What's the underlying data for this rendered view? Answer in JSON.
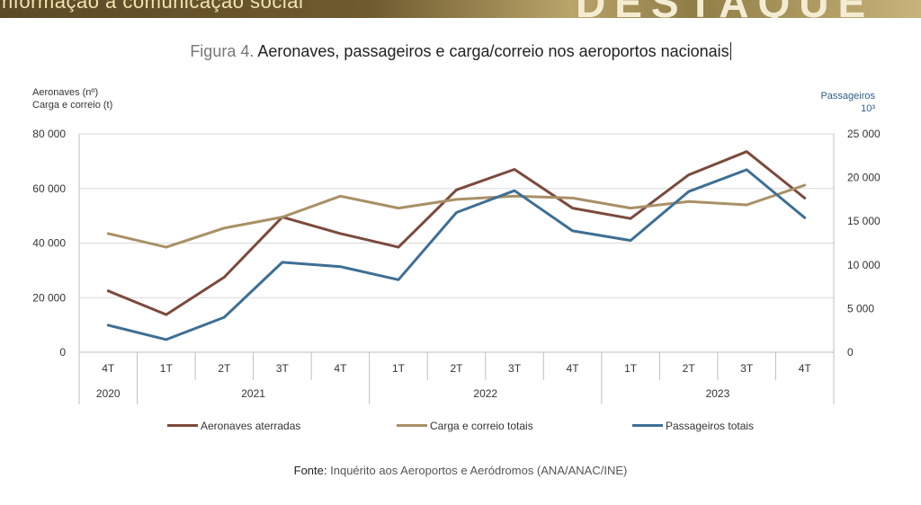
{
  "banner": {
    "left_text": "nformação à comunicação social",
    "right_text": "DESTAQUE"
  },
  "title": {
    "prefix": "Figura 4.",
    "text": "Aeronaves, passageiros e carga/correio nos aeroportos nacionais"
  },
  "source": {
    "label": "Fonte:",
    "text": "Inquérito aos Aeroportos e Aeródromos (ANA/ANAC/INE)"
  },
  "colors": {
    "aeronaves": "#7b4a3c",
    "carga": "#a89067",
    "passageiros": "#3e6f94",
    "grid": "#d9d9d9",
    "right_label": "#2e5f86"
  },
  "chart_data": {
    "type": "line",
    "title": "Aeronaves, passageiros e carga/correio nos aeroportos nacionais",
    "categories": [
      "4T",
      "1T",
      "2T",
      "3T",
      "4T",
      "1T",
      "2T",
      "3T",
      "4T",
      "1T",
      "2T",
      "3T",
      "4T"
    ],
    "years": [
      {
        "label": "2020",
        "span": 1
      },
      {
        "label": "2021",
        "span": 4
      },
      {
        "label": "2022",
        "span": 4
      },
      {
        "label": "2023",
        "span": 4
      }
    ],
    "ylabel_left": [
      "Aeronaves (nº)",
      "Carga e correio (t)"
    ],
    "ylabel_right": [
      "Passageiros",
      "10³"
    ],
    "ylim_left": [
      0,
      80000
    ],
    "yticks_left": [
      "0",
      "20 000",
      "40 000",
      "60 000",
      "80 000"
    ],
    "ylim_right": [
      0,
      25000
    ],
    "yticks_right": [
      "0",
      "5 000",
      "10 000",
      "15 000",
      "20 000",
      "25 000"
    ],
    "grid": "horizontal",
    "legend": "bottom",
    "series": [
      {
        "name": "Aeronaves aterradas",
        "axis": "left",
        "color": "#7b4a3c",
        "values": [
          22500,
          13800,
          27500,
          49500,
          43500,
          38500,
          59500,
          67000,
          52800,
          49000,
          65000,
          73500,
          56500
        ]
      },
      {
        "name": "Carga e correio totais",
        "axis": "left",
        "color": "#a89067",
        "values": [
          43500,
          38500,
          45500,
          49500,
          57200,
          52800,
          56000,
          57200,
          56500,
          52800,
          55200,
          54000,
          61200
        ]
      },
      {
        "name": "Passageiros totais",
        "axis": "right",
        "color": "#3e6f94",
        "values": [
          3100,
          1450,
          4000,
          10300,
          9800,
          8300,
          16000,
          18500,
          13900,
          12800,
          18400,
          20900,
          15400
        ]
      }
    ]
  }
}
